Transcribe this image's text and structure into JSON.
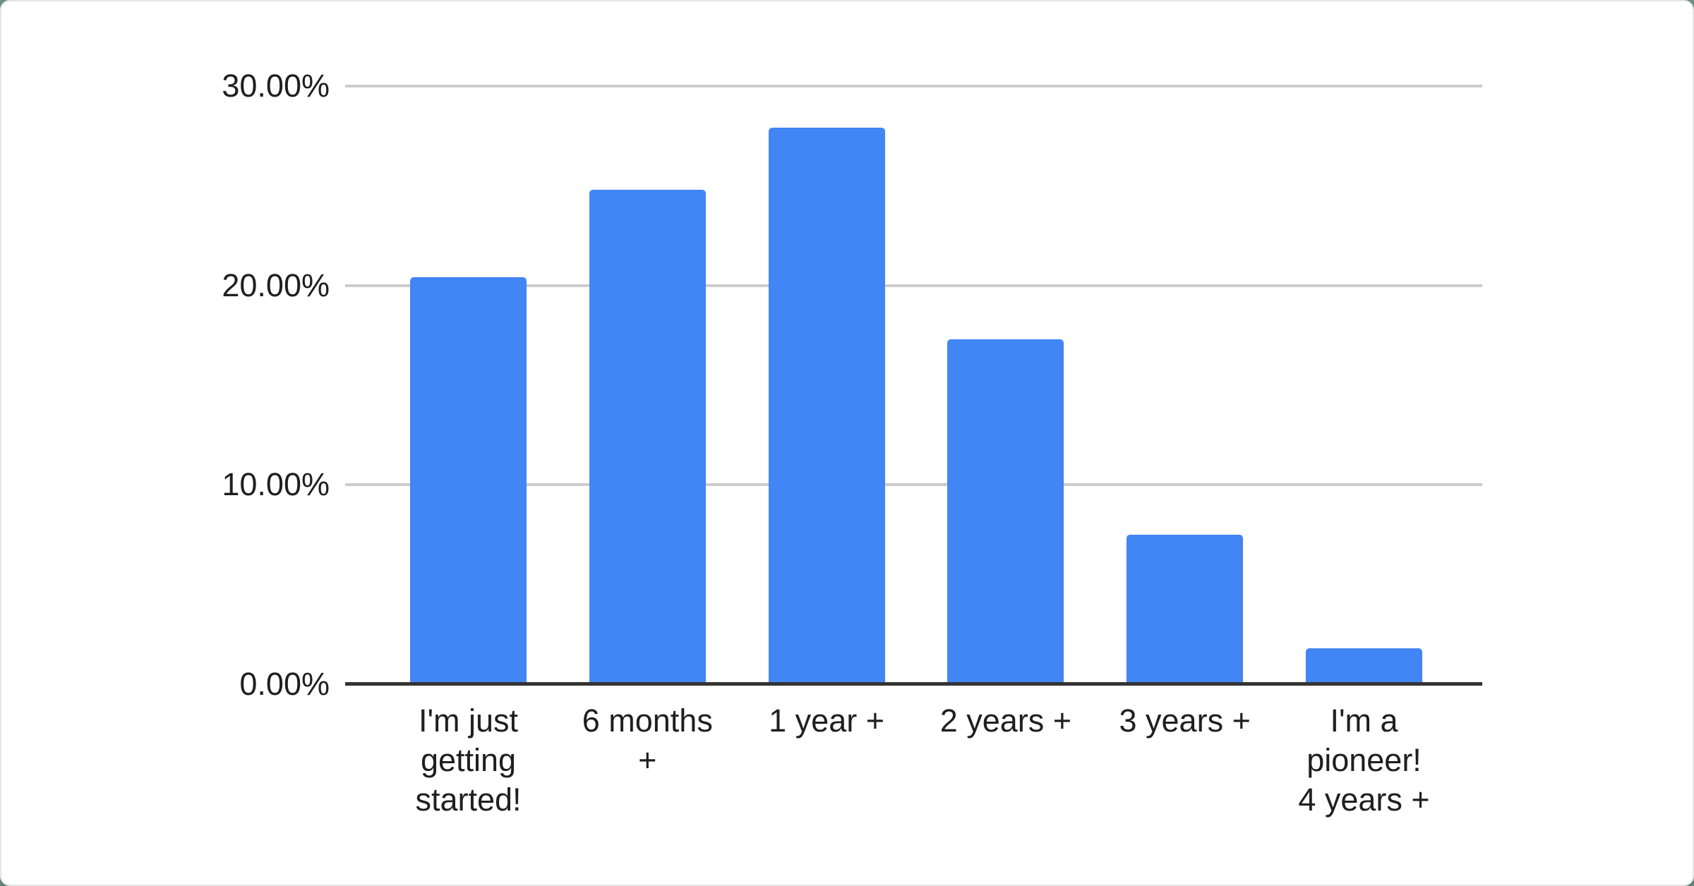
{
  "chart_data": {
    "type": "bar",
    "title": "",
    "xlabel": "",
    "ylabel": "",
    "categories": [
      "I'm just getting started!",
      "6 months +",
      "1 year +",
      "2 years +",
      "3 years +",
      "I'm a pioneer! 4 years +"
    ],
    "category_lines": [
      [
        "I'm just",
        "getting",
        "started!"
      ],
      [
        "6 months",
        "+"
      ],
      [
        "1 year +"
      ],
      [
        "2 years +"
      ],
      [
        "3 years +"
      ],
      [
        "I'm a",
        "pioneer!",
        "4 years +"
      ]
    ],
    "values": [
      20.4,
      24.8,
      27.9,
      17.3,
      7.5,
      1.8
    ],
    "ylim": [
      0,
      30
    ],
    "yticks": [
      0,
      10,
      20,
      30
    ],
    "ytick_labels": [
      "0.00%",
      "10.00%",
      "20.00%",
      "30.00%"
    ],
    "grid": true,
    "legend": false
  },
  "colors": {
    "bar": "#4285f4",
    "gridline": "#cccccc",
    "axis_line": "#333333",
    "text": "#1f1f1f",
    "card_bg": "#ffffff",
    "page_bg": "#6b9180"
  }
}
